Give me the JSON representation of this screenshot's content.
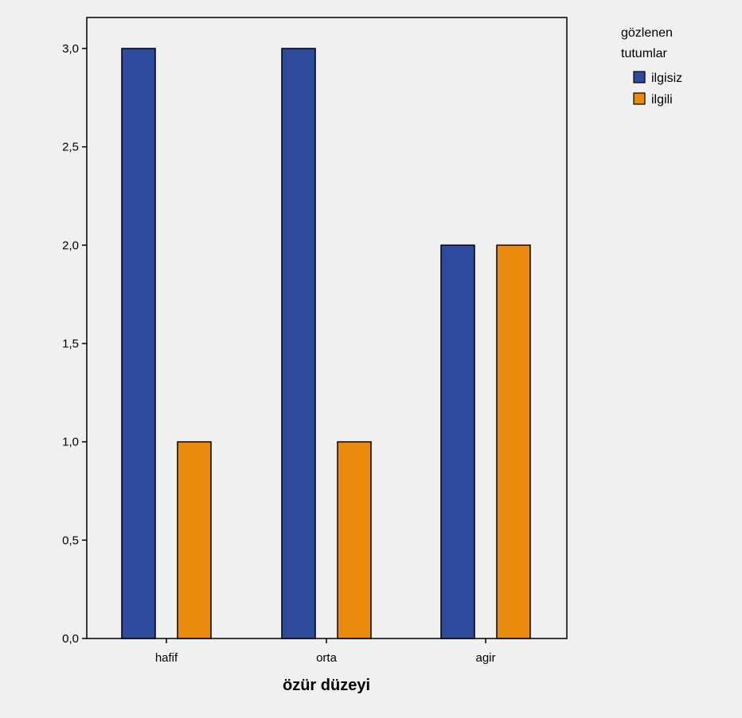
{
  "chart_data": {
    "type": "bar",
    "categories": [
      "hafif",
      "orta",
      "agir"
    ],
    "series": [
      {
        "name": "ilgisiz",
        "values": [
          3.0,
          3.0,
          2.0
        ],
        "color": "#2e4a9c"
      },
      {
        "name": "ilgili",
        "values": [
          1.0,
          1.0,
          2.0
        ],
        "color": "#ea8a0e"
      }
    ],
    "xlabel": "özür düzeyi",
    "ylabel": "",
    "ylim": [
      0,
      3.0
    ],
    "yticks": [
      "0,0",
      "0,5",
      "1,0",
      "1,5",
      "2,0",
      "2,5",
      "3,0"
    ],
    "grid": false,
    "legend": {
      "title_lines": [
        "gözlenen",
        "tutumlar"
      ],
      "placement": "right-top"
    },
    "colors": {
      "background": "#f0f0f0",
      "plot_background": "#f0f0f0"
    }
  }
}
